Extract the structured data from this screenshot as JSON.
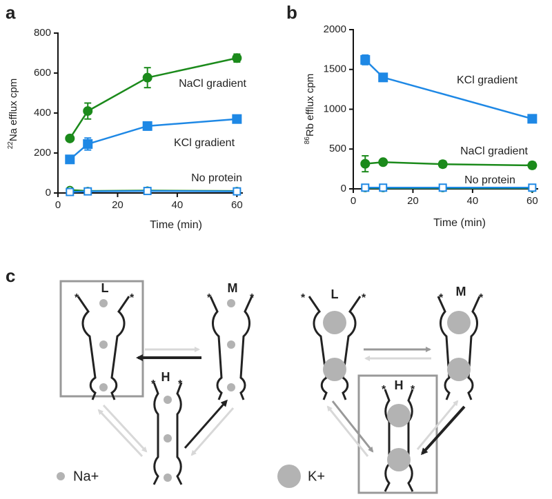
{
  "chart_data": [
    {
      "type": "line",
      "panel": "a",
      "ylabel_sup": "22",
      "ylabel": "Na efflux  cpm",
      "xlabel": "Time (min)",
      "xlim": [
        0,
        62
      ],
      "xticks": [
        0,
        20,
        40,
        60
      ],
      "ylim": [
        0,
        800
      ],
      "yticks": [
        0,
        200,
        400,
        600,
        800
      ],
      "series": [
        {
          "name": "NaCl gradient",
          "color": "#1b8a1b",
          "marker": "circle",
          "x": [
            4,
            10,
            30,
            60
          ],
          "values": [
            273,
            410,
            577,
            675
          ],
          "errors": [
            10,
            40,
            50,
            20
          ]
        },
        {
          "name": "KCl gradient",
          "color": "#1e88e5",
          "marker": "square",
          "x": [
            4,
            10,
            30,
            60
          ],
          "values": [
            168,
            245,
            335,
            370
          ],
          "errors": [
            10,
            30,
            20,
            12
          ]
        },
        {
          "name": "No protein",
          "color": "#1b8a1b",
          "marker": "open-circle",
          "x": [
            4,
            10,
            30,
            60
          ],
          "values": [
            15,
            10,
            12,
            10
          ]
        },
        {
          "color": "#1e88e5",
          "marker": "open-square",
          "x": [
            4,
            10,
            30,
            60
          ],
          "values": [
            5,
            8,
            10,
            8
          ]
        }
      ]
    },
    {
      "type": "line",
      "panel": "b",
      "ylabel_sup": "86",
      "ylabel": "Rb efflux  cpm",
      "xlabel": "Time (min)",
      "xlim": [
        0,
        62
      ],
      "xticks": [
        0,
        20,
        40,
        60
      ],
      "ylim": [
        0,
        2000
      ],
      "yticks": [
        0,
        500,
        1000,
        1500,
        2000
      ],
      "series": [
        {
          "name": "KCl gradient",
          "color": "#1e88e5",
          "marker": "square",
          "x": [
            4,
            10,
            60
          ],
          "values": [
            1620,
            1400,
            880
          ],
          "errors": [
            60,
            50,
            40
          ]
        },
        {
          "name": "NaCl gradient",
          "color": "#1b8a1b",
          "marker": "circle",
          "x": [
            4,
            10,
            30,
            60
          ],
          "values": [
            315,
            335,
            310,
            295
          ],
          "errors": [
            100,
            20,
            40,
            40
          ]
        },
        {
          "name": "No protein",
          "color": "#1b8a1b",
          "marker": "open-circle",
          "x": [
            4,
            10,
            30,
            60
          ],
          "values": [
            10,
            10,
            10,
            10
          ]
        },
        {
          "color": "#1e88e5",
          "marker": "open-square",
          "x": [
            4,
            10,
            30,
            60
          ],
          "values": [
            15,
            15,
            15,
            15
          ]
        }
      ]
    }
  ],
  "diagram": {
    "panel": "c",
    "marker": "*",
    "left": {
      "states": [
        "L",
        "M",
        "H"
      ],
      "legend": "Na+"
    },
    "right": {
      "states": [
        "L",
        "M",
        "H"
      ],
      "legend": "K+"
    }
  }
}
